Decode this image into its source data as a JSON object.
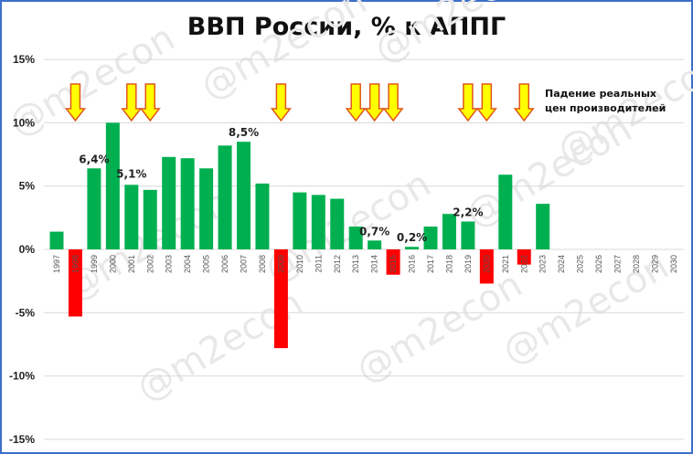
{
  "chart_data": {
    "type": "bar",
    "title": "ВВП России, % к АППГ",
    "categories": [
      "1997",
      "1998",
      "1999",
      "2000",
      "2001",
      "2002",
      "2003",
      "2004",
      "2005",
      "2006",
      "2007",
      "2008",
      "2009",
      "2010",
      "2011",
      "2012",
      "2013",
      "2014",
      "2015",
      "2016",
      "2017",
      "2018",
      "2019",
      "2020",
      "2021",
      "2022",
      "2023",
      "2024",
      "2025",
      "2026",
      "2027",
      "2028",
      "2029",
      "2030"
    ],
    "values": [
      1.4,
      -5.3,
      6.4,
      10.0,
      5.1,
      4.7,
      7.3,
      7.2,
      6.4,
      8.2,
      8.5,
      5.2,
      -7.8,
      4.5,
      4.3,
      4.0,
      1.8,
      0.7,
      -2.0,
      0.2,
      1.8,
      2.8,
      2.2,
      -2.7,
      5.9,
      -1.2,
      3.6,
      null,
      null,
      null,
      null,
      null,
      null,
      null
    ],
    "ylim": [
      -15,
      15
    ],
    "yticks": [
      "-15%",
      "-10%",
      "-5%",
      "0%",
      "5%",
      "10%",
      "15%"
    ],
    "ytick_values": [
      -15,
      -10,
      -5,
      0,
      5,
      10,
      15
    ],
    "grid": true,
    "colors": {
      "positive": "#00b050",
      "negative": "#ff0000",
      "arrow_fill": "#ffff00",
      "arrow_stroke": "#e0561b",
      "border": "#3d6fc9"
    },
    "data_labels": [
      {
        "category": "1999",
        "text": "6,4%"
      },
      {
        "category": "2001",
        "text": "5,1%"
      },
      {
        "category": "2007",
        "text": "8,5%"
      },
      {
        "category": "2014",
        "text": "0,7%"
      },
      {
        "category": "2016",
        "text": "0,2%"
      },
      {
        "category": "2019",
        "text": "2,2%"
      }
    ],
    "arrow_years": [
      "1998",
      "2001",
      "2002",
      "2009",
      "2013",
      "2014",
      "2015",
      "2019",
      "2020",
      "2022"
    ],
    "annotation": [
      "Падение реальных",
      "цен производителей"
    ],
    "watermark": "@m2econ"
  }
}
